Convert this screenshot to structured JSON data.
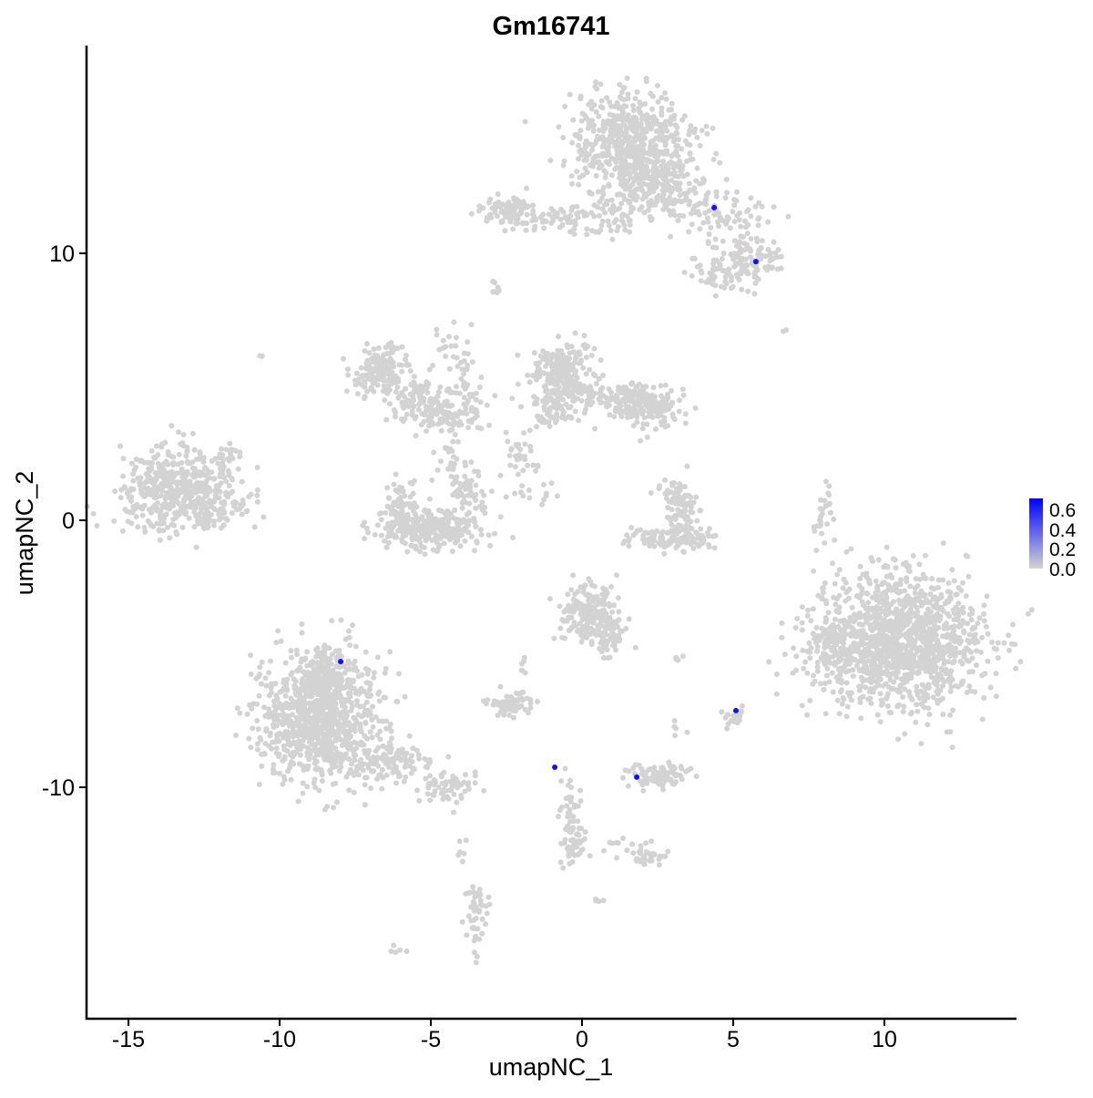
{
  "chart_data": {
    "type": "scatter",
    "title": "Gm16741",
    "xlabel": "umapNC_1",
    "ylabel": "umapNC_2",
    "xlim": [
      -16.5,
      14.3
    ],
    "ylim": [
      -18.6,
      17.8
    ],
    "xticks": [
      -15,
      -10,
      -5,
      0,
      5,
      10
    ],
    "yticks": [
      -10,
      0,
      10
    ],
    "grid": false,
    "colors": {
      "low": "#d3d3d3",
      "high": "#0000ff"
    },
    "legend": {
      "position": "right",
      "ticks": [
        "0.6",
        "0.4",
        "0.2",
        "0.0"
      ],
      "range": [
        0,
        0.65
      ]
    },
    "expressing_points": [
      {
        "x": 4.37,
        "y": 11.71,
        "value": 0.6
      },
      {
        "x": 5.75,
        "y": 9.69,
        "value": 0.6
      },
      {
        "x": -7.98,
        "y": -5.29,
        "value": 0.6
      },
      {
        "x": 5.09,
        "y": -7.13,
        "value": 0.6
      },
      {
        "x": -0.9,
        "y": -9.25,
        "value": 0.6
      },
      {
        "x": 1.81,
        "y": -9.62,
        "value": 0.6
      }
    ],
    "background_clusters": [
      {
        "x": 1.6,
        "y": 14.3,
        "sx": 1.0,
        "sy": 0.9,
        "n": 500
      },
      {
        "x": 1.9,
        "y": 12.8,
        "sx": 0.9,
        "sy": 0.7,
        "n": 250
      },
      {
        "x": 3.2,
        "y": 12.0,
        "sx": 0.8,
        "sy": 0.5,
        "n": 60
      },
      {
        "x": 4.8,
        "y": 11.3,
        "sx": 0.7,
        "sy": 0.6,
        "n": 70
      },
      {
        "x": 5.6,
        "y": 9.8,
        "sx": 0.5,
        "sy": 0.4,
        "n": 90
      },
      {
        "x": 4.7,
        "y": 9.2,
        "sx": 0.6,
        "sy": 0.3,
        "n": 60
      },
      {
        "x": -2.3,
        "y": 11.5,
        "sx": 0.5,
        "sy": 0.3,
        "n": 90
      },
      {
        "x": -0.8,
        "y": 11.3,
        "sx": 0.7,
        "sy": 0.2,
        "n": 50
      },
      {
        "x": 0.9,
        "y": 11.1,
        "sx": 0.5,
        "sy": 0.3,
        "n": 30
      },
      {
        "x": -2.8,
        "y": 8.7,
        "sx": 0.15,
        "sy": 0.15,
        "n": 8
      },
      {
        "x": -13.4,
        "y": 1.2,
        "sx": 1.0,
        "sy": 0.7,
        "n": 500
      },
      {
        "x": -12.3,
        "y": 0.3,
        "sx": 0.5,
        "sy": 0.3,
        "n": 60
      },
      {
        "x": -6.7,
        "y": 5.6,
        "sx": 0.5,
        "sy": 0.4,
        "n": 150
      },
      {
        "x": -5.3,
        "y": 4.5,
        "sx": 0.6,
        "sy": 0.4,
        "n": 100
      },
      {
        "x": -4.5,
        "y": 3.9,
        "sx": 0.5,
        "sy": 0.3,
        "n": 80
      },
      {
        "x": -4.3,
        "y": 6.2,
        "sx": 0.3,
        "sy": 0.8,
        "n": 30
      },
      {
        "x": -3.6,
        "y": 4.6,
        "sx": 0.4,
        "sy": 0.6,
        "n": 30
      },
      {
        "x": -5.0,
        "y": -0.3,
        "sx": 0.9,
        "sy": 0.35,
        "n": 300
      },
      {
        "x": -6.0,
        "y": 0.6,
        "sx": 0.3,
        "sy": 0.5,
        "n": 60
      },
      {
        "x": -3.8,
        "y": 1.0,
        "sx": 0.3,
        "sy": 0.5,
        "n": 60
      },
      {
        "x": -4.4,
        "y": 2.4,
        "sx": 0.2,
        "sy": 0.4,
        "n": 20
      },
      {
        "x": -0.6,
        "y": 5.6,
        "sx": 0.5,
        "sy": 0.5,
        "n": 200
      },
      {
        "x": -0.9,
        "y": 4.4,
        "sx": 0.5,
        "sy": 0.5,
        "n": 100
      },
      {
        "x": 1.2,
        "y": 4.6,
        "sx": 0.8,
        "sy": 0.3,
        "n": 150
      },
      {
        "x": 2.3,
        "y": 4.1,
        "sx": 0.5,
        "sy": 0.3,
        "n": 100
      },
      {
        "x": -2.0,
        "y": 2.6,
        "sx": 0.3,
        "sy": 0.5,
        "n": 30
      },
      {
        "x": -1.5,
        "y": 1.0,
        "sx": 0.5,
        "sy": 0.3,
        "n": 15
      },
      {
        "x": 2.9,
        "y": -0.7,
        "sx": 0.8,
        "sy": 0.2,
        "n": 120
      },
      {
        "x": 3.3,
        "y": 0.3,
        "sx": 0.3,
        "sy": 0.5,
        "n": 60
      },
      {
        "x": 3.0,
        "y": 1.1,
        "sx": 0.3,
        "sy": 0.3,
        "n": 30
      },
      {
        "x": 10.4,
        "y": -4.6,
        "sx": 1.4,
        "sy": 1.3,
        "n": 1300
      },
      {
        "x": 8.3,
        "y": -4.7,
        "sx": 0.4,
        "sy": 0.5,
        "n": 60
      },
      {
        "x": 8.0,
        "y": 0.3,
        "sx": 0.15,
        "sy": 0.6,
        "n": 25
      },
      {
        "x": 0.2,
        "y": -3.4,
        "sx": 0.5,
        "sy": 0.6,
        "n": 200
      },
      {
        "x": 1.0,
        "y": -4.4,
        "sx": 0.3,
        "sy": 0.4,
        "n": 50
      },
      {
        "x": -8.6,
        "y": -7.4,
        "sx": 1.0,
        "sy": 1.2,
        "n": 900
      },
      {
        "x": -8.5,
        "y": -5.8,
        "sx": 0.4,
        "sy": 0.5,
        "n": 120
      },
      {
        "x": -6.2,
        "y": -9.0,
        "sx": 0.6,
        "sy": 0.4,
        "n": 100
      },
      {
        "x": -4.5,
        "y": -10.0,
        "sx": 0.5,
        "sy": 0.3,
        "n": 70
      },
      {
        "x": -2.4,
        "y": -6.9,
        "sx": 0.4,
        "sy": 0.2,
        "n": 60
      },
      {
        "x": -1.9,
        "y": -5.4,
        "sx": 0.1,
        "sy": 0.3,
        "n": 6
      },
      {
        "x": 2.6,
        "y": -9.6,
        "sx": 0.5,
        "sy": 0.2,
        "n": 90
      },
      {
        "x": -0.4,
        "y": -10.9,
        "sx": 0.2,
        "sy": 0.8,
        "n": 50
      },
      {
        "x": -0.3,
        "y": -12.2,
        "sx": 0.2,
        "sy": 0.3,
        "n": 30
      },
      {
        "x": 2.2,
        "y": -12.6,
        "sx": 0.3,
        "sy": 0.2,
        "n": 30
      },
      {
        "x": 1.2,
        "y": -12.0,
        "sx": 0.5,
        "sy": 0.2,
        "n": 10
      },
      {
        "x": -3.5,
        "y": -14.7,
        "sx": 0.2,
        "sy": 0.6,
        "n": 50
      },
      {
        "x": -4.0,
        "y": -12.3,
        "sx": 0.1,
        "sy": 0.3,
        "n": 6
      },
      {
        "x": -6.1,
        "y": -16.1,
        "sx": 0.15,
        "sy": 0.1,
        "n": 6
      },
      {
        "x": 0.5,
        "y": -14.2,
        "sx": 0.1,
        "sy": 0.05,
        "n": 4
      },
      {
        "x": 5.0,
        "y": -7.3,
        "sx": 0.2,
        "sy": 0.2,
        "n": 20
      },
      {
        "x": 3.2,
        "y": -5.2,
        "sx": 0.1,
        "sy": 0.05,
        "n": 4
      },
      {
        "x": 3.2,
        "y": -7.8,
        "sx": 0.1,
        "sy": 0.2,
        "n": 5
      },
      {
        "x": -10.6,
        "y": 6.1,
        "sx": 0.05,
        "sy": 0.05,
        "n": 3
      },
      {
        "x": 6.7,
        "y": 7.1,
        "sx": 0.05,
        "sy": 0.05,
        "n": 2
      },
      {
        "x": -11.8,
        "y": 2.4,
        "sx": 0.3,
        "sy": 0.3,
        "n": 20
      }
    ]
  }
}
